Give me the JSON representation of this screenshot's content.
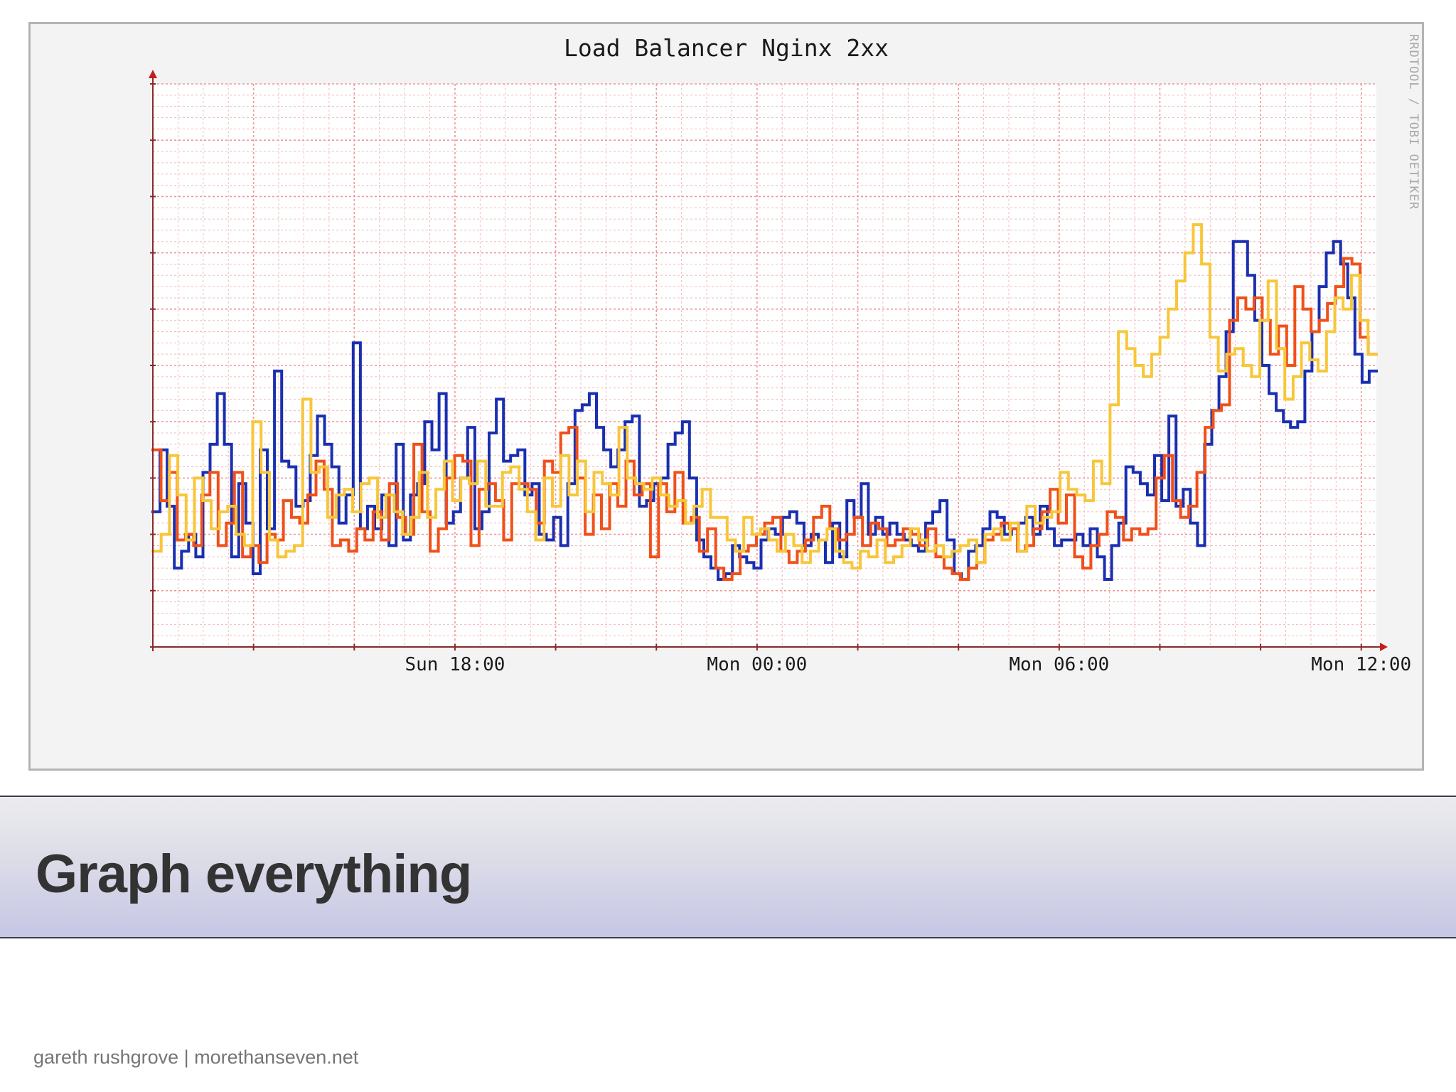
{
  "slide": {
    "title": "Graph everything",
    "footer": "gareth rushgrove | morethanseven.net"
  },
  "colors": {
    "grid_minor": "#f2bcbc",
    "grid_major": "#ee9898",
    "axis": "#8a2a2a",
    "arrow": "#c22020",
    "blue": "#1a2fb0",
    "red": "#f0501a",
    "yellow": "#f8c63a"
  },
  "chart_data": {
    "type": "line",
    "title": "Load Balancer Nginx 2xx",
    "watermark": "RRDTOOL / TOBI OETIKER",
    "x_ticks": [
      "Sun 18:00",
      "Mon 00:00",
      "Mon 06:00",
      "Mon 12:00"
    ],
    "x_tick_positions_hours": [
      6,
      12,
      18,
      24
    ],
    "xlim_hours": [
      0,
      24.3
    ],
    "ylim": [
      0,
      100
    ],
    "step": true,
    "legend": "none",
    "grid": true,
    "series": [
      {
        "color": "blue",
        "values": [
          24,
          35,
          25,
          14,
          17,
          20,
          16,
          31,
          36,
          45,
          36,
          16,
          29,
          22,
          13,
          35,
          21,
          49,
          33,
          32,
          25,
          26,
          34,
          41,
          36,
          32,
          22,
          27,
          54,
          21,
          25,
          21,
          27,
          18,
          36,
          19,
          27,
          29,
          40,
          35,
          45,
          22,
          24,
          30,
          39,
          21,
          24,
          38,
          44,
          33,
          34,
          35,
          27,
          29,
          20,
          19,
          23,
          18,
          29,
          42,
          43,
          45,
          39,
          35,
          32,
          35,
          40,
          41,
          25,
          26,
          29,
          30,
          36,
          38,
          40,
          30,
          19,
          16,
          14,
          12,
          13,
          18,
          16,
          15,
          14,
          19,
          21,
          20,
          23,
          24,
          22,
          18,
          20,
          19,
          15,
          22,
          16,
          26,
          23,
          29,
          20,
          23,
          20,
          22,
          20,
          19,
          18,
          17,
          22,
          24,
          26,
          19,
          13,
          12,
          17,
          18,
          21,
          24,
          23,
          20,
          21,
          22,
          23,
          20,
          25,
          21,
          18,
          19,
          19,
          20,
          18,
          21,
          16,
          12,
          18,
          22,
          32,
          31,
          29,
          27,
          34,
          26,
          41,
          25,
          28,
          22,
          18,
          36,
          42,
          48,
          56,
          72,
          72,
          66,
          58,
          50,
          45,
          42,
          40,
          39,
          40,
          49,
          56,
          64,
          70,
          72,
          68,
          62,
          52,
          47,
          49
        ]
      },
      {
        "color": "red",
        "values": [
          35,
          26,
          31,
          19,
          20,
          18,
          27,
          31,
          18,
          22,
          31,
          16,
          18,
          15,
          20,
          19,
          26,
          23,
          22,
          27,
          33,
          28,
          18,
          19,
          17,
          21,
          19,
          24,
          19,
          29,
          23,
          20,
          36,
          24,
          17,
          21,
          30,
          34,
          33,
          18,
          28,
          29,
          26,
          19,
          29,
          29,
          28,
          22,
          33,
          31,
          38,
          39,
          30,
          20,
          27,
          21,
          29,
          25,
          33,
          27,
          29,
          16,
          29,
          24,
          31,
          22,
          23,
          17,
          21,
          14,
          12,
          13,
          17,
          18,
          20,
          22,
          23,
          17,
          15,
          17,
          19,
          23,
          25,
          21,
          19,
          20,
          23,
          18,
          22,
          21,
          18,
          19,
          21,
          20,
          18,
          21,
          16,
          14,
          13,
          12,
          14,
          15,
          19,
          20,
          22,
          21,
          17,
          18,
          21,
          24,
          28,
          22,
          27,
          16,
          14,
          18,
          20,
          24,
          23,
          19,
          21,
          20,
          21,
          30,
          34,
          26,
          23,
          25,
          31,
          39,
          42,
          43,
          58,
          62,
          60,
          62,
          58,
          52,
          57,
          50,
          64,
          60,
          56,
          58,
          61,
          64,
          69,
          68,
          55,
          52
        ]
      },
      {
        "color": "yellow",
        "values": [
          17,
          20,
          34,
          27,
          19,
          30,
          26,
          21,
          24,
          25,
          20,
          18,
          40,
          31,
          19,
          16,
          17,
          18,
          44,
          31,
          32,
          23,
          27,
          28,
          24,
          29,
          30,
          23,
          27,
          24,
          20,
          23,
          31,
          23,
          28,
          33,
          26,
          30,
          29,
          33,
          25,
          25,
          31,
          32,
          28,
          24,
          19,
          30,
          25,
          34,
          27,
          33,
          24,
          31,
          29,
          27,
          39,
          30,
          29,
          28,
          30,
          27,
          25,
          26,
          22,
          25,
          28,
          23,
          23,
          19,
          17,
          23,
          20,
          21,
          19,
          17,
          20,
          18,
          15,
          17,
          19,
          21,
          17,
          15,
          14,
          17,
          16,
          19,
          15,
          16,
          18,
          21,
          19,
          17,
          18,
          16,
          17,
          18,
          19,
          15,
          20,
          21,
          19,
          22,
          17,
          25,
          22,
          23,
          24,
          31,
          28,
          27,
          26,
          33,
          29,
          43,
          56,
          53,
          50,
          48,
          52,
          55,
          60,
          65,
          70,
          75,
          68,
          55,
          49,
          52,
          53,
          50,
          48,
          58,
          65,
          53,
          44,
          48,
          54,
          51,
          49,
          56,
          62,
          60,
          66,
          58,
          52
        ]
      }
    ]
  }
}
